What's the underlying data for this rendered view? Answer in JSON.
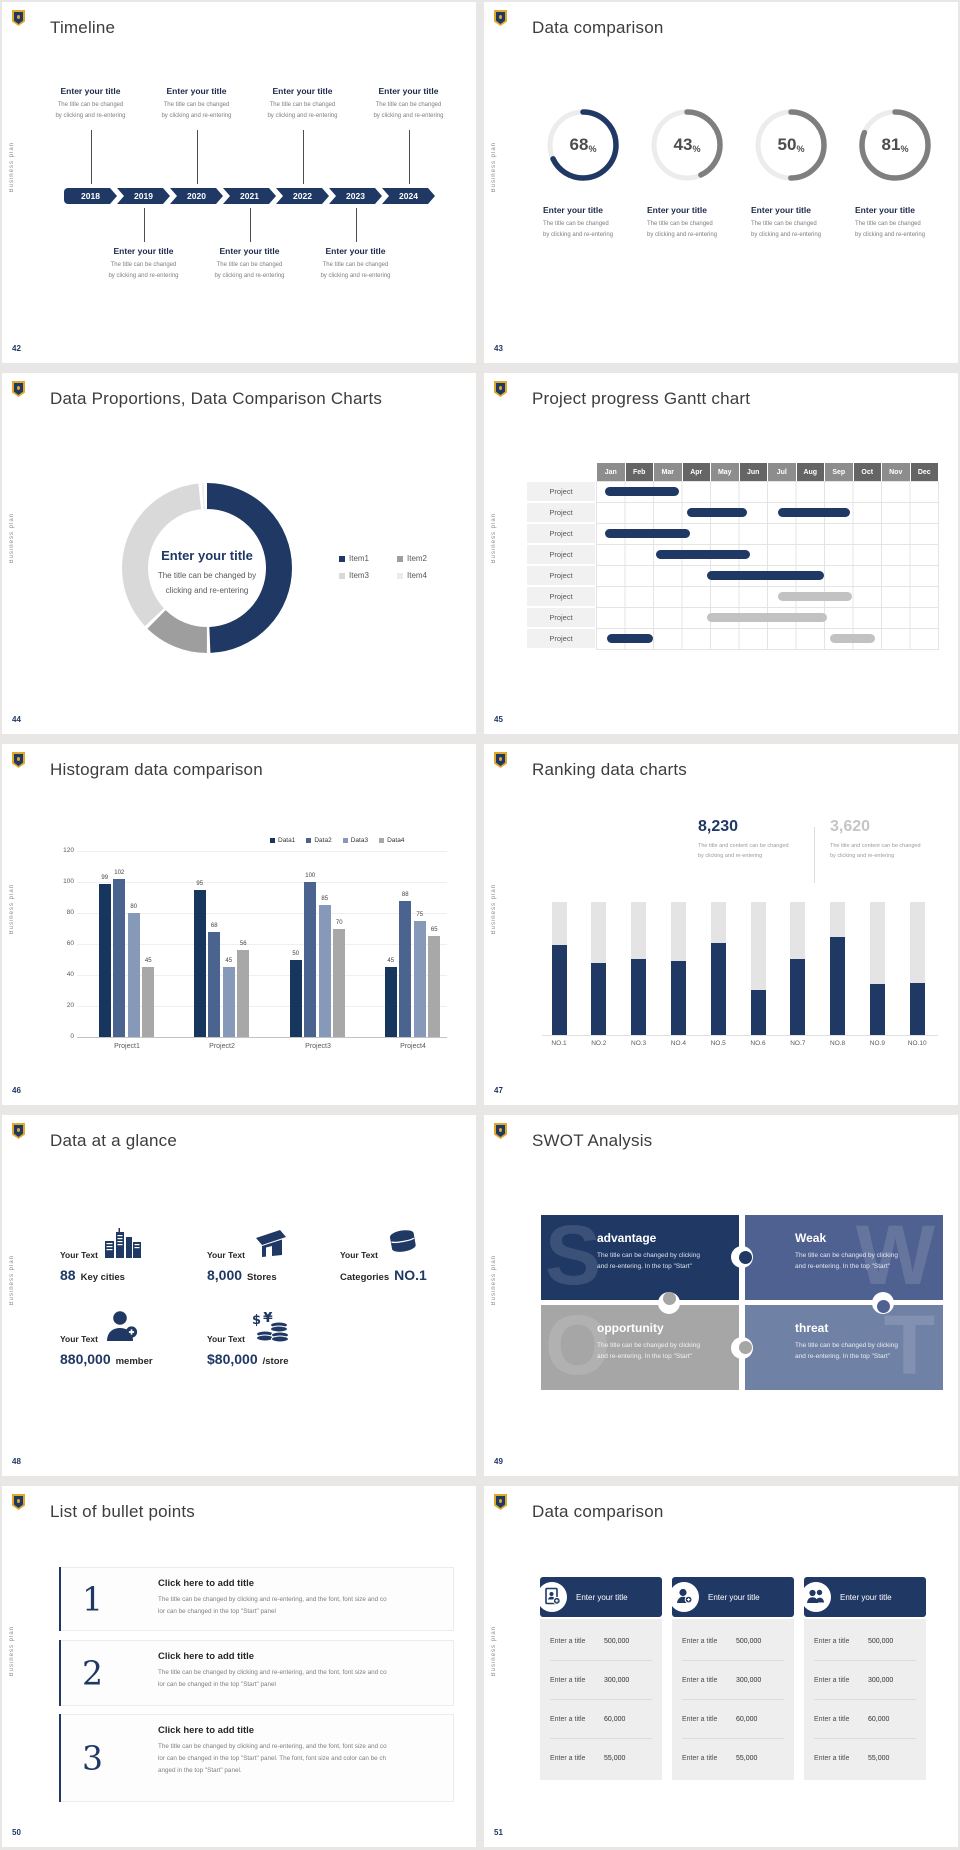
{
  "deck": {
    "brand_vertical": "Business plan",
    "colors": {
      "navy": "#1f3864",
      "gray_bar": "#c2c2c2",
      "accent_gold": "#dfa92c"
    },
    "placeholders": {
      "entry_title": "Enter your title",
      "entry_line1": "The title can be changed",
      "entry_line2": "by clicking and re-entering",
      "center_line1": "The title can be changed by",
      "center_line2": "clicking and re-entering",
      "stat_line1": "The title and content can be changed",
      "stat_line2": "by clicking and re-entering",
      "swot_line1": "The title can be changed by clicking",
      "swot_line2": "and re-entering. In the top \"Start\""
    }
  },
  "slides": {
    "timeline": {
      "number": "42",
      "title": "Timeline",
      "years": [
        "2018",
        "2019",
        "2020",
        "2021",
        "2022",
        "2023",
        "2024"
      ]
    },
    "rings": {
      "number": "43",
      "title": "Data comparison"
    },
    "donut": {
      "number": "44",
      "title": "Data Proportions, Data Comparison Charts",
      "center_title": "Enter your title"
    },
    "gantt": {
      "number": "45",
      "title": "Project progress Gantt chart",
      "row_label": "Project"
    },
    "histogram": {
      "number": "46",
      "title": "Histogram data comparison"
    },
    "ranking": {
      "number": "47",
      "title": "Ranking data charts",
      "stat1": "8,230",
      "stat2": "3,620"
    },
    "glance": {
      "number": "48",
      "title": "Data at a glance",
      "label": "Your Text",
      "items": [
        {
          "num": "88",
          "unit": "Key cities",
          "icon": "city-buildings-icon",
          "num_first": true
        },
        {
          "num": "8,000",
          "unit": "Stores",
          "icon": "store-icon",
          "num_first": true
        },
        {
          "num": "NO.1",
          "unit": "Categories",
          "icon": "categories-cylinder-icon",
          "num_first": false
        },
        {
          "num": "880,000",
          "unit": "member",
          "icon": "member-person-icon",
          "num_first": true
        },
        {
          "num": "$80,000",
          "unit": "/store",
          "icon": "money-coins-icon",
          "num_first": true
        }
      ]
    },
    "swot": {
      "number": "49",
      "title": "SWOT Analysis",
      "quads": [
        {
          "letter": "S",
          "title": "advantage",
          "color": "#1f3864",
          "letter_side": "left"
        },
        {
          "letter": "W",
          "title": "Weak",
          "color": "#4f6190",
          "letter_side": "right"
        },
        {
          "letter": "O",
          "title": "opportunity",
          "color": "#a6a6a6",
          "letter_side": "left"
        },
        {
          "letter": "T",
          "title": "threat",
          "color": "#7081a6",
          "letter_side": "right"
        }
      ]
    },
    "bullets": {
      "number": "50",
      "title": "List of bullet points",
      "items": [
        {
          "num": "1",
          "title": "Click here to add title",
          "lines": [
            "The title can be changed by clicking and re-entering, and the font, font size and co",
            "lor can be changed in the top \"Start\" panel"
          ]
        },
        {
          "num": "2",
          "title": "Click here to add title",
          "lines": [
            "The title can be changed by clicking and re-entering, and the font, font size and co",
            "lor can be changed in the top \"Start\" panel"
          ]
        },
        {
          "num": "3",
          "title": "Click here to add title",
          "lines": [
            "The title can be changed by clicking and re-entering, and the font, font size and co",
            "lor can be changed in the top \"Start\" panel. The font, font size and color can be ch",
            "anged in the top \"Start\" panel."
          ]
        }
      ]
    },
    "tables": {
      "number": "51",
      "title": "Data comparison",
      "card_header": "Enter your title",
      "row_label": "Enter a title",
      "card_icons": [
        "id-card-icon",
        "person-add-icon",
        "people-icon"
      ],
      "values": [
        "500,000",
        "300,000",
        "60,000",
        "55,000"
      ]
    }
  },
  "chart_data": [
    {
      "id": "progress-rings",
      "type": "pie",
      "variant": "progress-rings",
      "values": [
        68,
        43,
        50,
        81
      ],
      "unit": "%",
      "colors": [
        "#1f3864",
        "#7f7f7f",
        "#7f7f7f",
        "#7f7f7f"
      ],
      "track_color": "#ececec"
    },
    {
      "id": "proportion-donut",
      "type": "pie",
      "variant": "donut",
      "series": [
        {
          "name": "Item1",
          "value": 50,
          "color": "#1f3864"
        },
        {
          "name": "Item2",
          "value": 13,
          "color": "#9e9e9e"
        },
        {
          "name": "Item3",
          "value": 36,
          "color": "#d9d9d9"
        },
        {
          "name": "Item4",
          "value": 1,
          "color": "#ececec"
        }
      ],
      "legend_position": "right"
    },
    {
      "id": "gantt",
      "type": "bar",
      "variant": "gantt",
      "x_categories": [
        "Jan",
        "Feb",
        "Mar",
        "Apr",
        "May",
        "Jun",
        "Jul",
        "Aug",
        "Sep",
        "Oct",
        "Nov",
        "Dec"
      ],
      "rows": [
        [
          {
            "start": 0.3,
            "end": 2.9,
            "color": "navy"
          }
        ],
        [
          {
            "start": 3.2,
            "end": 5.3,
            "color": "navy"
          },
          {
            "start": 6.4,
            "end": 8.9,
            "color": "navy"
          }
        ],
        [
          {
            "start": 0.3,
            "end": 3.3,
            "color": "navy"
          }
        ],
        [
          {
            "start": 2.1,
            "end": 5.4,
            "color": "navy"
          }
        ],
        [
          {
            "start": 3.9,
            "end": 8.0,
            "color": "navy"
          }
        ],
        [
          {
            "start": 6.4,
            "end": 9.0,
            "color": "gray"
          }
        ],
        [
          {
            "start": 3.9,
            "end": 8.1,
            "color": "gray"
          }
        ],
        [
          {
            "start": 0.4,
            "end": 2.0,
            "color": "navy"
          },
          {
            "start": 8.2,
            "end": 9.8,
            "color": "gray"
          }
        ]
      ]
    },
    {
      "id": "histogram",
      "type": "bar",
      "categories": [
        "Project1",
        "Project2",
        "Project3",
        "Project4"
      ],
      "series": [
        {
          "name": "Data1",
          "color": "#17365d",
          "values": [
            99,
            95,
            50,
            45
          ]
        },
        {
          "name": "Data2",
          "color": "#4a648f",
          "values": [
            102,
            68,
            100,
            88
          ]
        },
        {
          "name": "Data3",
          "color": "#8799b8",
          "values": [
            80,
            45,
            85,
            75
          ]
        },
        {
          "name": "Data4",
          "color": "#a8a8a8",
          "values": [
            45,
            56,
            70,
            65
          ]
        }
      ],
      "ylim": [
        0,
        120
      ],
      "ytick_step": 20,
      "grid": true,
      "legend_position": "top-right"
    },
    {
      "id": "ranking",
      "type": "bar",
      "categories": [
        "NO.1",
        "NO.2",
        "NO.3",
        "NO.4",
        "NO.5",
        "NO.6",
        "NO.7",
        "NO.8",
        "NO.9",
        "NO.10"
      ],
      "values_pct_of_track": [
        68,
        54,
        57,
        56,
        69,
        34,
        57,
        74,
        38,
        39
      ],
      "bar_color": "#1f3864",
      "track_color": "#e4e4e4"
    },
    {
      "id": "comparison-tables",
      "type": "table",
      "columns": [
        "Enter a title",
        "value"
      ],
      "rows": [
        [
          "Enter a title",
          "500,000"
        ],
        [
          "Enter a title",
          "300,000"
        ],
        [
          "Enter a title",
          "60,000"
        ],
        [
          "Enter a title",
          "55,000"
        ]
      ],
      "repeated_cards": 3
    }
  ]
}
